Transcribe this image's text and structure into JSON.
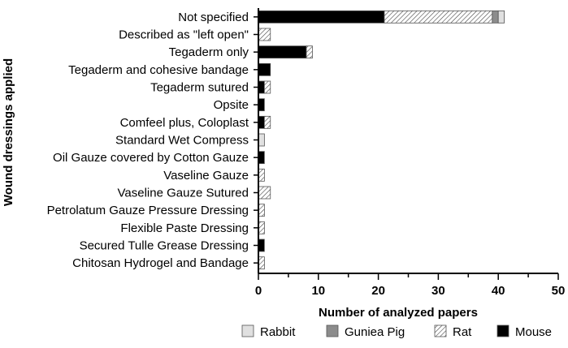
{
  "chart_data": {
    "type": "bar",
    "orientation": "horizontal",
    "stacked": true,
    "xlabel": "Number of analyzed papers",
    "ylabel": "Wound dressings applied",
    "xlim": [
      0,
      50
    ],
    "xticks": [
      "0",
      "10",
      "20",
      "30",
      "40",
      "50"
    ],
    "grid": false,
    "legend_position": "bottom",
    "categories": [
      "Not specified",
      "Described as \"left open\"",
      "Tegaderm only",
      "Tegaderm and cohesive bandage",
      "Tegaderm sutured",
      "Opsite",
      "Comfeel plus, Coloplast",
      "Standard Wet Compress",
      "Oil Gauze covered by Cotton Gauze",
      "Vaseline Gauze",
      "Vaseline Gauze Sutured",
      "Petrolatum Gauze Pressure Dressing",
      "Flexible Paste Dressing",
      "Secured Tulle Grease Dressing",
      "Chitosan Hydrogel and Bandage"
    ],
    "series": [
      {
        "name": "Mouse",
        "fill": "#000000",
        "pattern": "solid",
        "values": [
          21,
          0,
          8,
          2,
          1,
          1,
          1,
          0,
          1,
          0,
          0,
          0,
          0,
          1,
          0
        ]
      },
      {
        "name": "Rat",
        "fill": "#ffffff",
        "pattern": "hatch",
        "values": [
          18,
          2,
          1,
          0,
          1,
          0,
          1,
          0,
          0,
          1,
          2,
          1,
          1,
          0,
          1
        ]
      },
      {
        "name": "Guniea Pig",
        "fill": "#8c8c8c",
        "pattern": "solid",
        "values": [
          1,
          0,
          0,
          0,
          0,
          0,
          0,
          0,
          0,
          0,
          0,
          0,
          0,
          0,
          0
        ]
      },
      {
        "name": "Rabbit",
        "fill": "#e0e0e0",
        "pattern": "solid",
        "values": [
          1,
          0,
          0,
          0,
          0,
          0,
          0,
          1,
          0,
          0,
          0,
          0,
          0,
          0,
          0
        ]
      }
    ],
    "legend_order": [
      "Rabbit",
      "Guniea Pig",
      "Rat",
      "Mouse"
    ]
  }
}
